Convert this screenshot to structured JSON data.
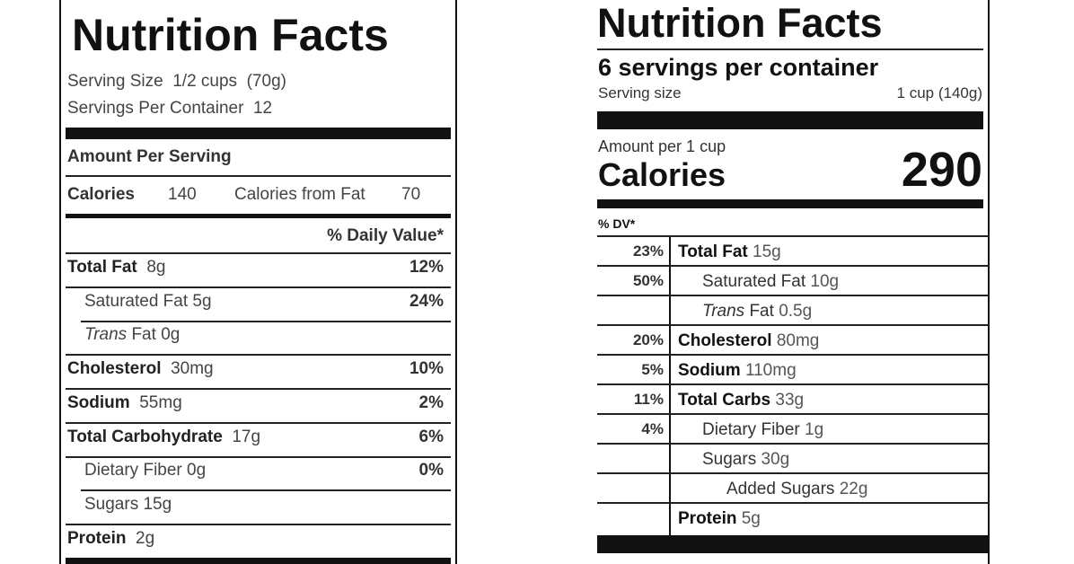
{
  "left_label": {
    "title": "Nutrition Facts",
    "serving_size": "Serving Size  1/2 cups  (70g)",
    "servings": "Servings Per Container  12",
    "amount_header": "Amount Per Serving",
    "calories_label": "Calories",
    "calories": "140",
    "fat_calories_label": "Calories from Fat",
    "fat_calories": "70",
    "dv_header": "% Daily Value*",
    "rows": [
      {
        "name": "Total Fat",
        "amount": "8g",
        "dv": "12%",
        "bold": true,
        "indent": 0
      },
      {
        "name": "Saturated Fat",
        "amount": "5g",
        "dv": "24%",
        "bold": false,
        "indent": 1
      },
      {
        "italic": "Trans",
        "name": "Fat",
        "amount": "0g",
        "bold": false,
        "indent": 1
      },
      {
        "name": "Cholesterol",
        "amount": "30mg",
        "dv": "10%",
        "bold": true,
        "indent": 0
      },
      {
        "name": "Sodium",
        "amount": "55mg",
        "dv": "2%",
        "bold": true,
        "indent": 0
      },
      {
        "name": "Total Carbohydrate",
        "amount": "17g",
        "dv": "6%",
        "bold": true,
        "indent": 0
      },
      {
        "name": "Dietary Fiber",
        "amount": "0g",
        "dv": "0%",
        "bold": false,
        "indent": 1
      },
      {
        "name": "Sugars",
        "amount": "15g",
        "bold": false,
        "indent": 1
      },
      {
        "name": "Protein",
        "amount": "2g",
        "bold": true,
        "indent": 0
      }
    ]
  },
  "right_label": {
    "title": "Nutrition Facts",
    "servings": "6 servings per container",
    "serving_size_label": "Serving size",
    "serving_size": "1 cup (140g)",
    "amount_header": "Amount per 1 cup",
    "calories_label": "Calories",
    "calories": "290",
    "dv_header": "% DV*",
    "rows": [
      {
        "dv": "23%",
        "name": "Total Fat",
        "amount": "15g",
        "bold": true,
        "indent": 0
      },
      {
        "dv": "50%",
        "name": "Saturated Fat",
        "amount": "10g",
        "bold": false,
        "indent": 1
      },
      {
        "italic": "Trans",
        "name": "Fat",
        "amount": "0.5g",
        "bold": false,
        "indent": 1
      },
      {
        "dv": "20%",
        "name": "Cholesterol",
        "amount": "80mg",
        "bold": true,
        "indent": 0
      },
      {
        "dv": "5%",
        "name": "Sodium",
        "amount": "110mg",
        "bold": true,
        "indent": 0
      },
      {
        "dv": "11%",
        "name": "Total Carbs",
        "amount": "33g",
        "bold": true,
        "indent": 0
      },
      {
        "dv": "4%",
        "name": "Dietary Fiber",
        "amount": "1g",
        "bold": false,
        "indent": 1
      },
      {
        "name": "Sugars",
        "amount": "30g",
        "bold": false,
        "indent": 1
      },
      {
        "name": "Added Sugars",
        "amount": "22g",
        "bold": false,
        "indent": 2
      },
      {
        "name": "Protein",
        "amount": "5g",
        "bold": true,
        "indent": 0
      }
    ]
  }
}
